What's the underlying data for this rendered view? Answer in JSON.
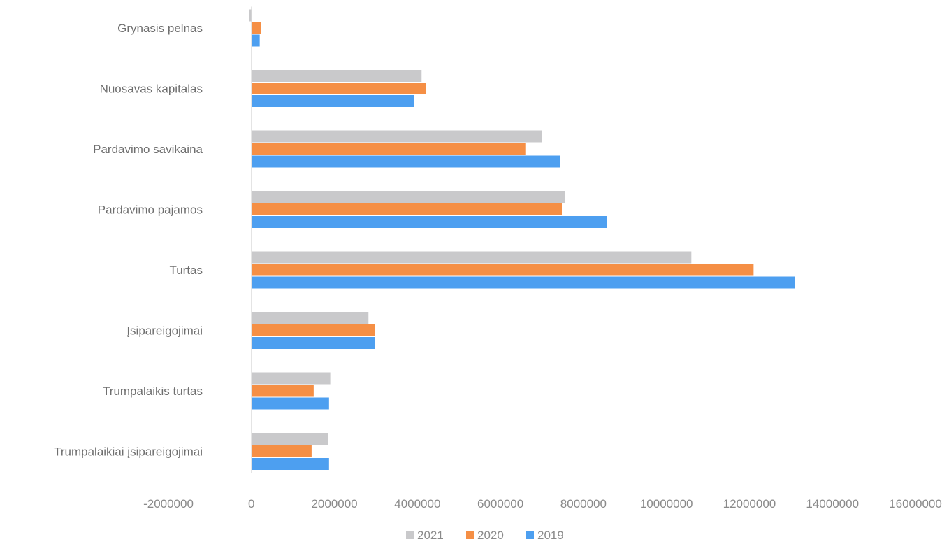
{
  "chart_data": {
    "type": "bar",
    "orientation": "horizontal",
    "title": "",
    "xlabel": "",
    "ylabel": "",
    "categories": [
      "Grynasis pelnas",
      "Nuosavas kapitalas",
      "Pardavimo savikaina",
      "Pardavimo pajamos",
      "Turtas",
      "Įsipareigojimai",
      "Trumpalaikis turtas",
      "Trumpalaikiai įsipareigojimai"
    ],
    "series": [
      {
        "name": "2021",
        "color": "#c9c9cb",
        "values": [
          -50000,
          4100000,
          7000000,
          7550000,
          10600000,
          2820000,
          1900000,
          1850000
        ]
      },
      {
        "name": "2020",
        "color": "#f58f45",
        "values": [
          230000,
          4200000,
          6600000,
          7480000,
          12100000,
          2970000,
          1500000,
          1450000
        ]
      },
      {
        "name": "2019",
        "color": "#4d9ff0",
        "values": [
          200000,
          3920000,
          7440000,
          8570000,
          13100000,
          2970000,
          1870000,
          1870000
        ]
      }
    ],
    "xlim": [
      -2000000,
      16000000
    ],
    "xticks": [
      "-2000000",
      "0",
      "2000000",
      "4000000",
      "6000000",
      "8000000",
      "10000000",
      "12000000",
      "14000000",
      "16000000"
    ],
    "legend": {
      "position": "bottom",
      "order": [
        "2021",
        "2020",
        "2019"
      ]
    },
    "grid": false
  }
}
